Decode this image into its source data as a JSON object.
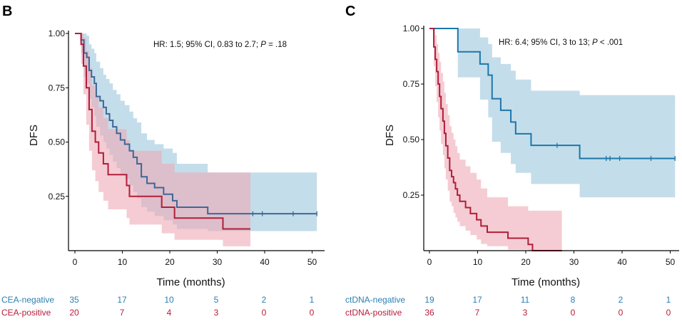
{
  "chart_data": [
    {
      "type": "line",
      "subtype": "kaplan-meier",
      "panel": "B",
      "xlabel": "Time (months)",
      "ylabel": "DFS",
      "xlim": [
        0,
        52
      ],
      "ylim": [
        0,
        1
      ],
      "xticks": [
        0,
        10,
        20,
        30,
        40,
        50
      ],
      "yticks": [
        0.25,
        0.5,
        0.75,
        1.0
      ],
      "ytick_labels": [
        "0.25",
        "0.50",
        "0.75",
        "1.00"
      ],
      "annotation": {
        "pre": "HR: 1.5; 95% CI, 0.83 to 2.7; ",
        "p": "P",
        "post": " = .18"
      },
      "series": [
        {
          "name": "CEA-negative",
          "color": "#2c7fb0",
          "line_color": "#3e6796",
          "band_color": "#9cc6dc",
          "x": [
            0,
            1.3,
            1.9,
            2.5,
            3.0,
            3.5,
            4.1,
            4.5,
            5.3,
            6.0,
            6.6,
            7.3,
            8.0,
            8.8,
            9.6,
            10.5,
            11.5,
            12.3,
            13.1,
            14.0,
            15.2,
            16.8,
            18.7,
            20.6,
            21.5,
            26.3,
            28.0,
            37.0,
            51.0
          ],
          "y": [
            1.0,
            0.97,
            0.91,
            0.89,
            0.83,
            0.8,
            0.77,
            0.71,
            0.69,
            0.66,
            0.63,
            0.6,
            0.57,
            0.54,
            0.51,
            0.49,
            0.46,
            0.43,
            0.4,
            0.34,
            0.31,
            0.29,
            0.26,
            0.23,
            0.2,
            0.2,
            0.17,
            0.17,
            0.17
          ],
          "upper": [
            1.0,
            1.0,
            1.0,
            0.99,
            0.95,
            0.93,
            0.91,
            0.87,
            0.84,
            0.81,
            0.79,
            0.77,
            0.74,
            0.72,
            0.69,
            0.67,
            0.64,
            0.61,
            0.59,
            0.54,
            0.51,
            0.49,
            0.47,
            0.45,
            0.4,
            0.4,
            0.36,
            0.36,
            0.36
          ],
          "lower": [
            1.0,
            0.91,
            0.8,
            0.77,
            0.7,
            0.66,
            0.62,
            0.57,
            0.53,
            0.5,
            0.47,
            0.44,
            0.41,
            0.38,
            0.35,
            0.33,
            0.3,
            0.27,
            0.24,
            0.2,
            0.18,
            0.16,
            0.14,
            0.12,
            0.1,
            0.1,
            0.09,
            0.09,
            0.09
          ],
          "censors": [
            37.5,
            39.5,
            46.0,
            51.0
          ],
          "risk_label": "CEA-negative",
          "at_risk": [
            "35",
            "17",
            "10",
            "5",
            "2",
            "1"
          ]
        },
        {
          "name": "CEA-positive",
          "color": "#b71c3a",
          "line_color": "#b01e3a",
          "band_color": "#eeaab5",
          "x": [
            0,
            1.3,
            1.8,
            2.4,
            3.0,
            3.6,
            4.3,
            5.0,
            6.0,
            7.0,
            10.9,
            11.5,
            13.5,
            18.3,
            20.0,
            21.0,
            26.0,
            31.2,
            33.0,
            37.0
          ],
          "y": [
            1.0,
            0.95,
            0.85,
            0.75,
            0.65,
            0.55,
            0.5,
            0.45,
            0.4,
            0.35,
            0.3,
            0.25,
            0.25,
            0.2,
            0.2,
            0.15,
            0.15,
            0.1,
            0.1,
            0.1
          ],
          "upper": [
            1.0,
            1.0,
            0.98,
            0.92,
            0.84,
            0.76,
            0.71,
            0.66,
            0.61,
            0.56,
            0.51,
            0.46,
            0.46,
            0.4,
            0.4,
            0.36,
            0.36,
            0.36,
            0.36,
            0.36
          ],
          "lower": [
            1.0,
            0.86,
            0.72,
            0.58,
            0.46,
            0.37,
            0.32,
            0.27,
            0.23,
            0.19,
            0.15,
            0.12,
            0.12,
            0.08,
            0.08,
            0.05,
            0.05,
            0.02,
            0.02,
            0.02
          ],
          "censors": [],
          "risk_label": "CEA-positive",
          "at_risk": [
            "20",
            "7",
            "4",
            "3",
            "0",
            "0"
          ]
        }
      ]
    },
    {
      "type": "line",
      "subtype": "kaplan-meier",
      "panel": "C",
      "xlabel": "Time (months)",
      "ylabel": "DFS",
      "xlim": [
        0,
        52
      ],
      "ylim": [
        0,
        1
      ],
      "xticks": [
        0,
        10,
        20,
        30,
        40,
        50
      ],
      "yticks": [
        0.25,
        0.5,
        0.75,
        1.0
      ],
      "ytick_labels": [
        "0.25",
        "0.50",
        "0.75",
        "1.00"
      ],
      "annotation": {
        "pre": "HR: 6.4; 95% CI, 3 to 13; ",
        "p": "P",
        "post": " < .001"
      },
      "series": [
        {
          "name": "ctDNA-negative",
          "color": "#2c7fb0",
          "line_color": "#1b77ab",
          "band_color": "#9cc6dc",
          "x": [
            0,
            5.9,
            10.5,
            12.2,
            13.0,
            14.8,
            16.9,
            17.9,
            21.1,
            27.0,
            31.2,
            51.0
          ],
          "y": [
            1.0,
            0.895,
            0.84,
            0.79,
            0.684,
            0.632,
            0.579,
            0.526,
            0.474,
            0.474,
            0.415,
            0.415
          ],
          "upper": [
            1.0,
            1.0,
            0.96,
            0.93,
            0.87,
            0.84,
            0.81,
            0.77,
            0.72,
            0.72,
            0.7,
            0.7
          ],
          "lower": [
            1.0,
            0.78,
            0.68,
            0.6,
            0.49,
            0.44,
            0.39,
            0.35,
            0.3,
            0.3,
            0.24,
            0.24
          ],
          "censors": [
            26.5,
            36.7,
            37.5,
            39.5,
            46.0,
            51.0
          ],
          "risk_label": "ctDNA-negative",
          "at_risk": [
            "19",
            "17",
            "11",
            "8",
            "2",
            "1"
          ]
        },
        {
          "name": "ctDNA-positive",
          "color": "#b71c3a",
          "line_color": "#b01e3a",
          "band_color": "#eeaab5",
          "x": [
            0,
            0.9,
            1.2,
            1.5,
            1.8,
            2.1,
            2.4,
            2.8,
            3.1,
            3.4,
            3.8,
            4.2,
            4.6,
            5.0,
            5.4,
            5.8,
            6.3,
            7.5,
            8.5,
            9.8,
            10.7,
            12.0,
            13.8,
            16.3,
            18.8,
            20.5,
            21.4,
            27.5
          ],
          "y": [
            1.0,
            0.917,
            0.861,
            0.806,
            0.75,
            0.694,
            0.639,
            0.583,
            0.528,
            0.472,
            0.417,
            0.361,
            0.333,
            0.306,
            0.278,
            0.25,
            0.222,
            0.194,
            0.167,
            0.139,
            0.111,
            0.083,
            0.083,
            0.056,
            0.056,
            0.028,
            0.0,
            0.0
          ],
          "upper": [
            1.0,
            1.0,
            0.97,
            0.93,
            0.89,
            0.85,
            0.8,
            0.76,
            0.71,
            0.66,
            0.61,
            0.56,
            0.53,
            0.5,
            0.47,
            0.44,
            0.41,
            0.38,
            0.35,
            0.32,
            0.28,
            0.24,
            0.24,
            0.2,
            0.2,
            0.18,
            0.18,
            0.18
          ],
          "lower": [
            1.0,
            0.83,
            0.74,
            0.67,
            0.6,
            0.54,
            0.48,
            0.43,
            0.37,
            0.32,
            0.27,
            0.22,
            0.2,
            0.17,
            0.15,
            0.13,
            0.11,
            0.09,
            0.07,
            0.05,
            0.03,
            0.02,
            0.02,
            0.005,
            0.005,
            0.0,
            0.0,
            0.0
          ],
          "censors": [],
          "risk_label": "ctDNA-positive",
          "at_risk": [
            "36",
            "7",
            "3",
            "0",
            "0",
            "0"
          ]
        }
      ]
    }
  ]
}
